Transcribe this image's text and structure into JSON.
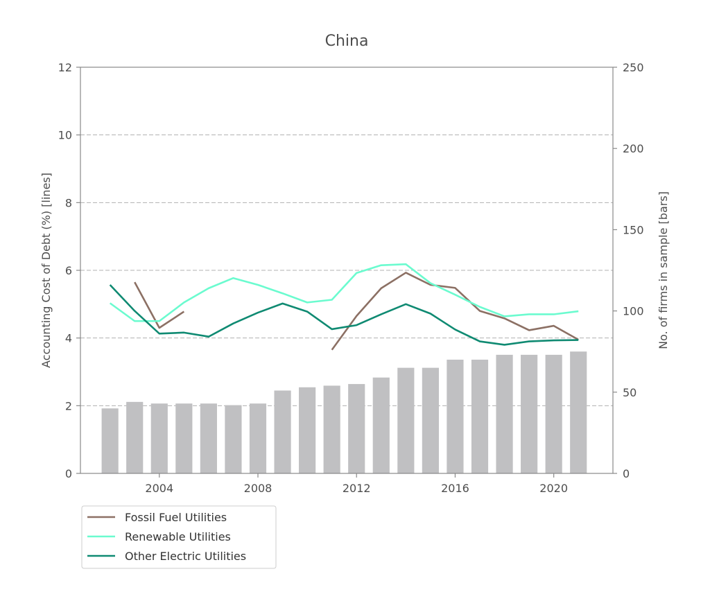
{
  "chart_data": {
    "type": "line",
    "title": "China",
    "xlabel": "",
    "ylabel_left": "Accounting Cost of Debt (%) [lines]",
    "ylabel_right": "No. of firms in sample  [bars]",
    "xlim": [
      2000.8,
      2022.4
    ],
    "ylim_left": [
      0,
      12
    ],
    "ylim_right": [
      0,
      250
    ],
    "x_ticks": [
      2004,
      2008,
      2012,
      2016,
      2020
    ],
    "y_ticks_left": [
      0,
      2,
      4,
      6,
      8,
      10,
      12
    ],
    "y_ticks_right": [
      0,
      50,
      100,
      150,
      200,
      250
    ],
    "grid": "horizontal dashed (left axis)",
    "legend_position": "below plot, left",
    "bars": {
      "axis": "right",
      "color": "#c0c0c2",
      "x": [
        2002,
        2003,
        2004,
        2005,
        2006,
        2007,
        2008,
        2009,
        2010,
        2011,
        2012,
        2013,
        2014,
        2015,
        2016,
        2017,
        2018,
        2019,
        2020,
        2021
      ],
      "values": [
        40,
        44,
        43,
        43,
        43,
        42,
        43,
        51,
        53,
        54,
        55,
        59,
        65,
        65,
        70,
        70,
        73,
        73,
        73,
        75
      ]
    },
    "series": [
      {
        "name": "Fossil Fuel Utilities",
        "color": "#8c7064",
        "points": [
          [
            [
              2003,
              5.65
            ],
            [
              2004,
              4.3
            ],
            [
              2005,
              4.78
            ]
          ],
          [
            [
              2011,
              3.65
            ],
            [
              2012,
              4.65
            ],
            [
              2013,
              5.47
            ],
            [
              2014,
              5.93
            ],
            [
              2015,
              5.57
            ],
            [
              2016,
              5.48
            ],
            [
              2017,
              4.8
            ],
            [
              2018,
              4.58
            ],
            [
              2019,
              4.23
            ],
            [
              2020,
              4.36
            ],
            [
              2021,
              3.95
            ]
          ]
        ]
      },
      {
        "name": "Renewable Utilities",
        "color": "#6bfbcf",
        "points": [
          [
            [
              2002,
              5.03
            ],
            [
              2003,
              4.5
            ],
            [
              2004,
              4.5
            ],
            [
              2005,
              5.05
            ],
            [
              2006,
              5.47
            ],
            [
              2007,
              5.77
            ],
            [
              2008,
              5.57
            ],
            [
              2009,
              5.32
            ],
            [
              2010,
              5.05
            ],
            [
              2011,
              5.13
            ],
            [
              2012,
              5.92
            ],
            [
              2013,
              6.15
            ],
            [
              2014,
              6.18
            ],
            [
              2015,
              5.62
            ],
            [
              2016,
              5.28
            ],
            [
              2017,
              4.92
            ],
            [
              2018,
              4.64
            ],
            [
              2019,
              4.7
            ],
            [
              2020,
              4.7
            ],
            [
              2021,
              4.79
            ]
          ]
        ]
      },
      {
        "name": "Other Electric Utilities",
        "color": "#0f8a72",
        "points": [
          [
            [
              2002,
              5.57
            ],
            [
              2003,
              4.8
            ],
            [
              2004,
              4.13
            ],
            [
              2005,
              4.16
            ],
            [
              2006,
              4.04
            ],
            [
              2007,
              4.43
            ],
            [
              2008,
              4.75
            ],
            [
              2009,
              5.02
            ],
            [
              2010,
              4.78
            ],
            [
              2011,
              4.26
            ],
            [
              2012,
              4.38
            ],
            [
              2013,
              4.7
            ],
            [
              2014,
              5.0
            ],
            [
              2015,
              4.72
            ],
            [
              2016,
              4.25
            ],
            [
              2017,
              3.9
            ],
            [
              2018,
              3.8
            ],
            [
              2019,
              3.9
            ],
            [
              2020,
              3.93
            ],
            [
              2021,
              3.94
            ]
          ]
        ]
      }
    ]
  }
}
